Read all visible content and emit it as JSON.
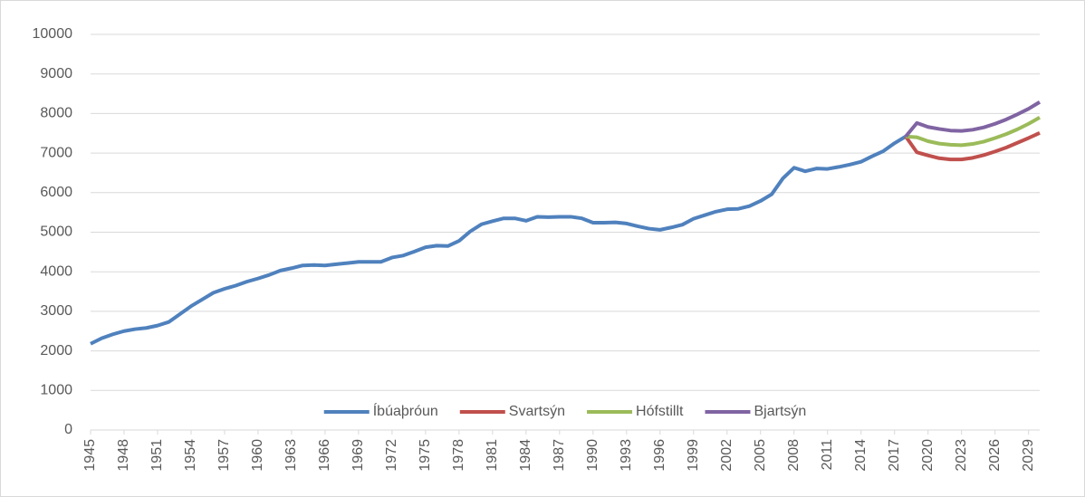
{
  "chart_data": {
    "type": "line",
    "x": [
      1945,
      1946,
      1947,
      1948,
      1949,
      1950,
      1951,
      1952,
      1953,
      1954,
      1955,
      1956,
      1957,
      1958,
      1959,
      1960,
      1961,
      1962,
      1963,
      1964,
      1965,
      1966,
      1967,
      1968,
      1969,
      1970,
      1971,
      1972,
      1973,
      1974,
      1975,
      1976,
      1977,
      1978,
      1979,
      1980,
      1981,
      1982,
      1983,
      1984,
      1985,
      1986,
      1987,
      1988,
      1989,
      1990,
      1991,
      1992,
      1993,
      1994,
      1995,
      1996,
      1997,
      1998,
      1999,
      2000,
      2001,
      2002,
      2003,
      2004,
      2005,
      2006,
      2007,
      2008,
      2009,
      2010,
      2011,
      2012,
      2013,
      2014,
      2015,
      2016,
      2017,
      2018,
      2019,
      2020,
      2021,
      2022,
      2023,
      2024,
      2025,
      2026,
      2027,
      2028,
      2029,
      2030
    ],
    "xlim": [
      1945,
      2030
    ],
    "xticks": [
      1945,
      1948,
      1951,
      1954,
      1957,
      1960,
      1963,
      1966,
      1969,
      1972,
      1975,
      1978,
      1981,
      1984,
      1987,
      1990,
      1993,
      1996,
      1999,
      2002,
      2005,
      2008,
      2011,
      2014,
      2017,
      2020,
      2023,
      2026,
      2029
    ],
    "ylim": [
      0,
      10000
    ],
    "yticks": [
      0,
      1000,
      2000,
      3000,
      4000,
      5000,
      6000,
      7000,
      8000,
      9000,
      10000
    ],
    "grid": true,
    "legend": "bottom",
    "series": [
      {
        "name": "Íbúaþróun",
        "color": "#4f81bd",
        "values": [
          2180,
          2320,
          2420,
          2500,
          2550,
          2580,
          2640,
          2730,
          2930,
          3130,
          3300,
          3470,
          3570,
          3650,
          3750,
          3830,
          3920,
          4030,
          4090,
          4160,
          4170,
          4160,
          4190,
          4220,
          4250,
          4250,
          4250,
          4360,
          4410,
          4510,
          4620,
          4660,
          4650,
          4780,
          5020,
          5200,
          5280,
          5350,
          5350,
          5290,
          5390,
          5380,
          5390,
          5390,
          5350,
          5240,
          5240,
          5250,
          5220,
          5150,
          5090,
          5060,
          5120,
          5190,
          5340,
          5430,
          5520,
          5580,
          5590,
          5660,
          5790,
          5960,
          6360,
          6630,
          6540,
          6610,
          6600,
          6650,
          6710,
          6780,
          6920,
          7050,
          7250,
          7420,
          null,
          null,
          null,
          null,
          null,
          null,
          null,
          null,
          null,
          null,
          null,
          null
        ]
      },
      {
        "name": "Svartsýn",
        "color": "#c0504d",
        "values": [
          null,
          null,
          null,
          null,
          null,
          null,
          null,
          null,
          null,
          null,
          null,
          null,
          null,
          null,
          null,
          null,
          null,
          null,
          null,
          null,
          null,
          null,
          null,
          null,
          null,
          null,
          null,
          null,
          null,
          null,
          null,
          null,
          null,
          null,
          null,
          null,
          null,
          null,
          null,
          null,
          null,
          null,
          null,
          null,
          null,
          null,
          null,
          null,
          null,
          null,
          null,
          null,
          null,
          null,
          null,
          null,
          null,
          null,
          null,
          null,
          null,
          null,
          null,
          null,
          null,
          null,
          null,
          null,
          null,
          null,
          null,
          null,
          null,
          7420,
          7020,
          6940,
          6870,
          6840,
          6840,
          6880,
          6950,
          7040,
          7140,
          7260,
          7380,
          7510
        ]
      },
      {
        "name": "Hófstillt",
        "color": "#9bbb59",
        "values": [
          null,
          null,
          null,
          null,
          null,
          null,
          null,
          null,
          null,
          null,
          null,
          null,
          null,
          null,
          null,
          null,
          null,
          null,
          null,
          null,
          null,
          null,
          null,
          null,
          null,
          null,
          null,
          null,
          null,
          null,
          null,
          null,
          null,
          null,
          null,
          null,
          null,
          null,
          null,
          null,
          null,
          null,
          null,
          null,
          null,
          null,
          null,
          null,
          null,
          null,
          null,
          null,
          null,
          null,
          null,
          null,
          null,
          null,
          null,
          null,
          null,
          null,
          null,
          null,
          null,
          null,
          null,
          null,
          null,
          null,
          null,
          null,
          null,
          7420,
          7400,
          7300,
          7240,
          7210,
          7200,
          7230,
          7290,
          7380,
          7480,
          7600,
          7740,
          7900
        ]
      },
      {
        "name": "Bjartsýn",
        "color": "#8064a2",
        "values": [
          null,
          null,
          null,
          null,
          null,
          null,
          null,
          null,
          null,
          null,
          null,
          null,
          null,
          null,
          null,
          null,
          null,
          null,
          null,
          null,
          null,
          null,
          null,
          null,
          null,
          null,
          null,
          null,
          null,
          null,
          null,
          null,
          null,
          null,
          null,
          null,
          null,
          null,
          null,
          null,
          null,
          null,
          null,
          null,
          null,
          null,
          null,
          null,
          null,
          null,
          null,
          null,
          null,
          null,
          null,
          null,
          null,
          null,
          null,
          null,
          null,
          null,
          null,
          null,
          null,
          null,
          null,
          null,
          null,
          null,
          null,
          null,
          null,
          7420,
          7760,
          7660,
          7610,
          7570,
          7560,
          7590,
          7650,
          7740,
          7850,
          7980,
          8120,
          8290
        ]
      }
    ]
  }
}
